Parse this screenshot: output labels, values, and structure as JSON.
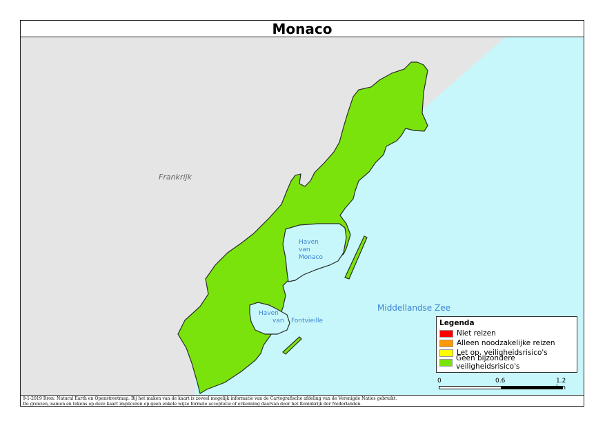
{
  "map": {
    "title": "Monaco",
    "labels": {
      "country": "Frankrijk",
      "sea": "Middellandse Zee",
      "harbor_monaco": [
        "Haven",
        "van",
        "Monaco"
      ],
      "harbor_fontvieille_1": "Haven",
      "harbor_fontvieille_2": "van",
      "harbor_fontvieille_3": "Fontvieille"
    },
    "colors": {
      "land_neighbor": "#e5e5e5",
      "sea": "#c7f7fa",
      "monaco_fill": "#7ae30b",
      "border": "#2b2b2b",
      "water_label": "#3b82d4"
    }
  },
  "legend": {
    "title": "Legenda",
    "items": [
      {
        "label": "Niet reizen",
        "color": "#ff0000"
      },
      {
        "label": "Alleen noodzakelijke reizen",
        "color": "#ff9900"
      },
      {
        "label": "Let op, veiligheidsrisico's",
        "color": "#ffff00"
      },
      {
        "label": "Geen bijzondere veiligheidsrisico's",
        "color": "#7ae30b"
      }
    ]
  },
  "scalebar": {
    "labels": [
      "0",
      "0.6",
      "1.2 km"
    ]
  },
  "footer": {
    "line1": "9-1-2019 Bron: Natural Earth en Openstreetmap. Bij het maken van de kaart is zoveel mogelijk informatie van de Cartografische afdeling van de Verenigde Naties gebruikt.",
    "line2": "De grenzen, namen en tekens op deze kaart impliceren op geen enkele wijze formele acceptatie of erkenning daarvan door het Koninkrijk der Nederlanden."
  }
}
